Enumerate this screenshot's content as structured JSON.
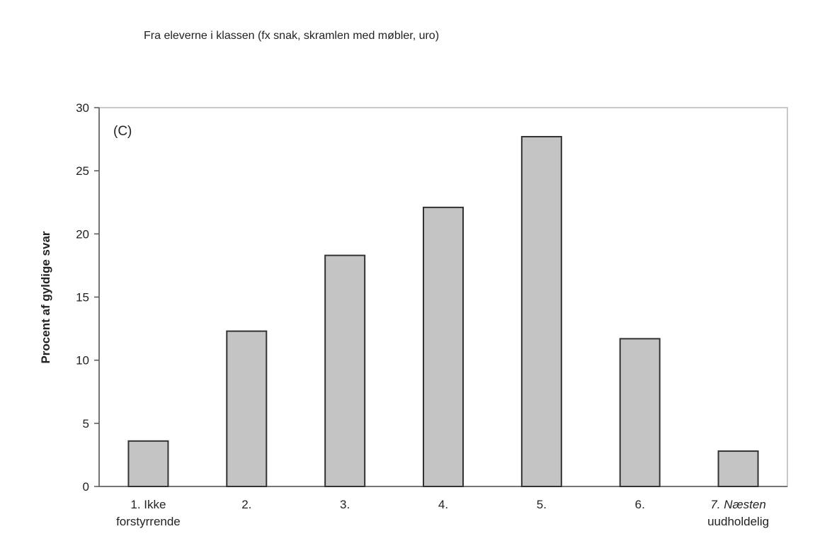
{
  "chart_data": {
    "type": "bar",
    "title": "Fra eleverne i klassen (fx snak, skramlen med møbler, uro)",
    "panel_label": "(C)",
    "xlabel": "",
    "ylabel": "Procent af gyldige svar",
    "ylim": [
      0,
      30
    ],
    "yticks": [
      0,
      5,
      10,
      15,
      20,
      25,
      30
    ],
    "grid": false,
    "categories": [
      [
        "1. Ikke",
        "forstyrrende"
      ],
      [
        "2."
      ],
      [
        "3."
      ],
      [
        "4."
      ],
      [
        "5."
      ],
      [
        "6."
      ],
      [
        "7. Næsten",
        "uudholdelig"
      ]
    ],
    "italic_categories": [
      6
    ],
    "values": [
      3.6,
      12.3,
      18.3,
      22.1,
      27.7,
      11.7,
      2.8
    ]
  }
}
